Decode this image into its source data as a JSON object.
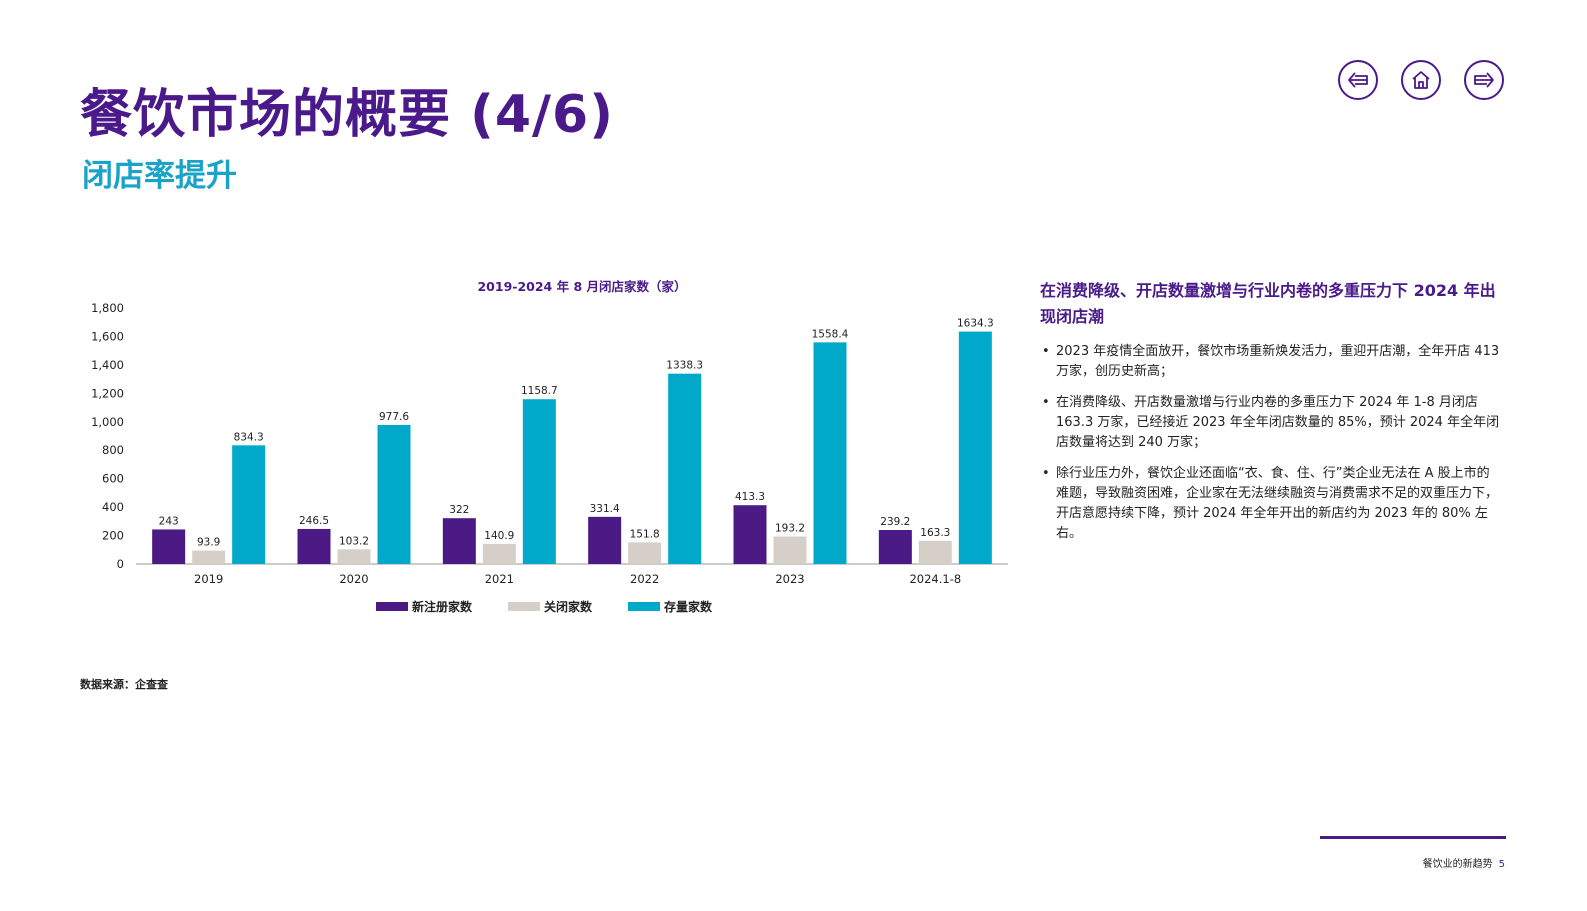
{
  "header": {
    "title": "餐饮市场的概要 (4/6)",
    "subtitle": "闭店率提升"
  },
  "nav": {
    "icons": [
      "arrow-left-icon",
      "home-icon",
      "arrow-right-icon"
    ],
    "color": "#4a1a8a"
  },
  "chart_data": {
    "type": "bar",
    "title": "2019-2024 年 8 月闭店家数（家）",
    "categories": [
      "2019",
      "2020",
      "2021",
      "2022",
      "2023",
      "2024.1-8"
    ],
    "series": [
      {
        "name": "新注册家数",
        "values": [
          243,
          246.5,
          322,
          331.4,
          413.3,
          239.2
        ],
        "labels": [
          "243",
          "246.5",
          "322",
          "331.4",
          "413.3",
          "239.2"
        ],
        "color": "#4b1a85"
      },
      {
        "name": "关闭家数",
        "values": [
          93.9,
          103.2,
          140.9,
          151.8,
          193.2,
          163.3
        ],
        "labels": [
          "93.9",
          "103.2",
          "140.9",
          "151.8",
          "193.2",
          "163.3"
        ],
        "color": "#d6cfc7"
      },
      {
        "name": "存量家数",
        "values": [
          834.3,
          977.6,
          1158.7,
          1338.3,
          1558.4,
          1634.3
        ],
        "labels": [
          "834.3",
          "977.6",
          "1158.7",
          "1338.3",
          "1558.4",
          "1634.3"
        ],
        "color": "#00a9c9"
      }
    ],
    "ylim": [
      0,
      1800
    ],
    "yticks": [
      "0",
      "200",
      "400",
      "600",
      "800",
      "1,000",
      "1,200",
      "1,400",
      "1,600",
      "1,800"
    ],
    "legend": "bottom",
    "grid": false
  },
  "source": "数据来源：企查查",
  "side": {
    "heading": "在消费降级、开店数量激增与行业内卷的多重压力下 2024 年出现闭店潮",
    "bullets": [
      "2023 年疫情全面放开，餐饮市场重新焕发活力，重迎开店潮，全年开店 413 万家，创历史新高；",
      "在消费降级、开店数量激增与行业内卷的多重压力下 2024 年 1-8 月闭店 163.3 万家，已经接近 2023 年全年闭店数量的 85%，预计 2024 年全年闭店数量将达到 240 万家；",
      "除行业压力外，餐饮企业还面临“衣、食、住、行”类企业无法在 A 股上市的难题，导致融资困难，企业家在无法继续融资与消费需求不足的双重压力下，开店意愿持续下降，预计 2024 年全年开出的新店约为 2023 年的 80% 左右。"
    ]
  },
  "footer": {
    "label": "餐饮业的新趋势",
    "page": "5"
  }
}
